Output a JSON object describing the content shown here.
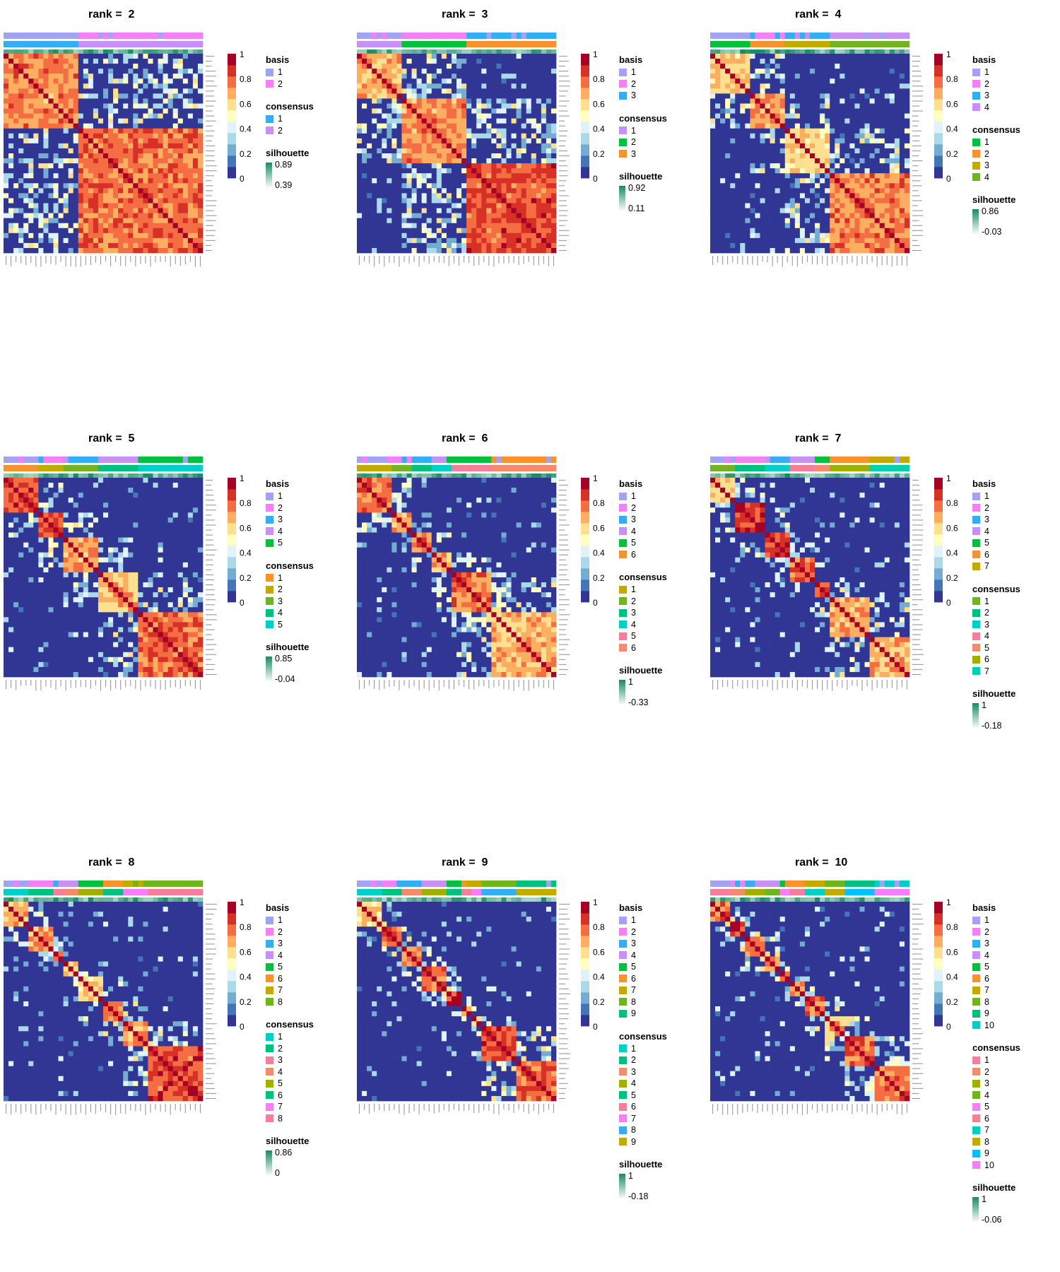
{
  "chart_data": [
    {
      "type": "heatmap",
      "title": "rank =  2",
      "rank": 2,
      "zlim": [
        0,
        1
      ],
      "colorbar_ticks": [
        "1",
        "0.8",
        "0.6",
        "0.4",
        "0.2",
        "0"
      ],
      "basis": [
        "1",
        "2"
      ],
      "consensus": [
        "1",
        "2"
      ],
      "silhouette": {
        "max": "0.89",
        "min": "0.39"
      }
    },
    {
      "type": "heatmap",
      "title": "rank =  3",
      "rank": 3,
      "zlim": [
        0,
        1
      ],
      "colorbar_ticks": [
        "1",
        "0.8",
        "0.6",
        "0.4",
        "0.2",
        "0"
      ],
      "basis": [
        "1",
        "2",
        "3"
      ],
      "consensus": [
        "1",
        "2",
        "3"
      ],
      "silhouette": {
        "max": "0.92",
        "min": "0.11"
      }
    },
    {
      "type": "heatmap",
      "title": "rank =  4",
      "rank": 4,
      "zlim": [
        0,
        1
      ],
      "colorbar_ticks": [
        "1",
        "0.8",
        "0.6",
        "0.4",
        "0.2",
        "0"
      ],
      "basis": [
        "1",
        "2",
        "3",
        "4"
      ],
      "consensus": [
        "1",
        "2",
        "3",
        "4"
      ],
      "silhouette": {
        "max": "0.86",
        "min": "-0.03"
      }
    },
    {
      "type": "heatmap",
      "title": "rank =  5",
      "rank": 5,
      "zlim": [
        0,
        1
      ],
      "colorbar_ticks": [
        "1",
        "0.8",
        "0.6",
        "0.4",
        "0.2",
        "0"
      ],
      "basis": [
        "1",
        "2",
        "3",
        "4",
        "5"
      ],
      "consensus": [
        "1",
        "2",
        "3",
        "4",
        "5"
      ],
      "silhouette": {
        "max": "0.85",
        "min": "-0.04"
      }
    },
    {
      "type": "heatmap",
      "title": "rank =  6",
      "rank": 6,
      "zlim": [
        0,
        1
      ],
      "colorbar_ticks": [
        "1",
        "0.8",
        "0.6",
        "0.4",
        "0.2",
        "0"
      ],
      "basis": [
        "1",
        "2",
        "3",
        "4",
        "5",
        "6"
      ],
      "consensus": [
        "1",
        "2",
        "3",
        "4",
        "5",
        "6"
      ],
      "silhouette": {
        "max": "1",
        "min": "-0.33"
      }
    },
    {
      "type": "heatmap",
      "title": "rank =  7",
      "rank": 7,
      "zlim": [
        0,
        1
      ],
      "colorbar_ticks": [
        "1",
        "0.8",
        "0.6",
        "0.4",
        "0.2",
        "0"
      ],
      "basis": [
        "1",
        "2",
        "3",
        "4",
        "5",
        "6",
        "7"
      ],
      "consensus": [
        "1",
        "2",
        "3",
        "4",
        "5",
        "6",
        "7"
      ],
      "silhouette": {
        "max": "1",
        "min": "-0.18"
      }
    },
    {
      "type": "heatmap",
      "title": "rank =  8",
      "rank": 8,
      "zlim": [
        0,
        1
      ],
      "colorbar_ticks": [
        "1",
        "0.8",
        "0.6",
        "0.4",
        "0.2",
        "0"
      ],
      "basis": [
        "1",
        "2",
        "3",
        "4",
        "5",
        "6",
        "7",
        "8"
      ],
      "consensus": [
        "1",
        "2",
        "3",
        "4",
        "5",
        "6",
        "7",
        "8"
      ],
      "silhouette": {
        "max": "0.86",
        "min": "0"
      }
    },
    {
      "type": "heatmap",
      "title": "rank =  9",
      "rank": 9,
      "zlim": [
        0,
        1
      ],
      "colorbar_ticks": [
        "1",
        "0.8",
        "0.6",
        "0.4",
        "0.2",
        "0"
      ],
      "basis": [
        "1",
        "2",
        "3",
        "4",
        "5",
        "6",
        "7",
        "8",
        "9"
      ],
      "consensus": [
        "1",
        "2",
        "3",
        "4",
        "5",
        "6",
        "7",
        "8",
        "9"
      ],
      "silhouette": {
        "max": "1",
        "min": "-0.18"
      }
    },
    {
      "type": "heatmap",
      "title": "rank =  10",
      "rank": 10,
      "zlim": [
        0,
        1
      ],
      "colorbar_ticks": [
        "1",
        "0.8",
        "0.6",
        "0.4",
        "0.2",
        "0"
      ],
      "basis": [
        "1",
        "2",
        "3",
        "4",
        "5",
        "6",
        "7",
        "8",
        "9",
        "10"
      ],
      "consensus": [
        "1",
        "2",
        "3",
        "4",
        "5",
        "6",
        "7",
        "8",
        "9",
        "10"
      ],
      "silhouette": {
        "max": "1",
        "min": "-0.06"
      }
    }
  ],
  "legend_titles": {
    "basis": "basis",
    "consensus": "consensus",
    "silhouette": "silhouette"
  },
  "palettes": {
    "basis": {
      "2": [
        "#a3a3f5",
        "#f57ff5"
      ],
      "3": [
        "#a3a3f5",
        "#f57ff5",
        "#33aef5"
      ],
      "4": [
        "#a3a3f5",
        "#f57ff5",
        "#33aef5",
        "#c890f2"
      ],
      "5": [
        "#a3a3f5",
        "#f57ff5",
        "#33aef5",
        "#c890f2",
        "#00c040"
      ],
      "6": [
        "#a3a3f5",
        "#f57ff5",
        "#33aef5",
        "#c890f2",
        "#00c040",
        "#f7922e"
      ],
      "7": [
        "#a3a3f5",
        "#f57ff5",
        "#33aef5",
        "#c890f2",
        "#00c040",
        "#f7922e",
        "#c4a900"
      ],
      "8": [
        "#a3a3f5",
        "#f57ff5",
        "#33aef5",
        "#c890f2",
        "#00c040",
        "#f7922e",
        "#c4a900",
        "#70b520"
      ],
      "9": [
        "#a3a3f5",
        "#f57ff5",
        "#33aef5",
        "#c890f2",
        "#00c040",
        "#f7922e",
        "#c4a900",
        "#70b520",
        "#00c080"
      ],
      "10": [
        "#a3a3f5",
        "#f57ff5",
        "#33aef5",
        "#c890f2",
        "#00c040",
        "#f7922e",
        "#c4a900",
        "#70b520",
        "#00c080",
        "#00cfc8"
      ]
    },
    "consensus": {
      "2": [
        "#33aef5",
        "#c890f2"
      ],
      "3": [
        "#c890f2",
        "#00c040",
        "#f7922e"
      ],
      "4": [
        "#00c040",
        "#f7922e",
        "#c4a900",
        "#70b520"
      ],
      "5": [
        "#f7922e",
        "#c4a900",
        "#70b520",
        "#00c080",
        "#00cfc8"
      ],
      "6": [
        "#c4a900",
        "#70b520",
        "#00c080",
        "#00cfc8",
        "#f57f9a",
        "#f58a70"
      ],
      "7": [
        "#70b520",
        "#00c080",
        "#00cfc8",
        "#f57f9a",
        "#f58a70",
        "#a0b000",
        "#00cfb0"
      ],
      "8": [
        "#00cfc8",
        "#00c080",
        "#f57f9a",
        "#f58a70",
        "#a0b000",
        "#00c080",
        "#f57ff5",
        "#f57f9a"
      ],
      "9": [
        "#00cfc8",
        "#00c080",
        "#f58a70",
        "#a0b000",
        "#00c080",
        "#f57f9a",
        "#f57ff5",
        "#33aef5",
        "#c4a900"
      ],
      "10": [
        "#f57f9a",
        "#f58a70",
        "#a0b000",
        "#70b520",
        "#f57ff5",
        "#f57f9a",
        "#00cfc8",
        "#c4a900",
        "#00c0ff",
        "#f57ff5"
      ]
    },
    "heat": [
      "#313695",
      "#4575b4",
      "#74add1",
      "#abd9e9",
      "#e0f3f8",
      "#ffffbf",
      "#fee090",
      "#fdae61",
      "#f46d43",
      "#d73027",
      "#a50026"
    ],
    "silhouette_gradient": [
      "#1a8a60",
      "#ffffff"
    ]
  }
}
